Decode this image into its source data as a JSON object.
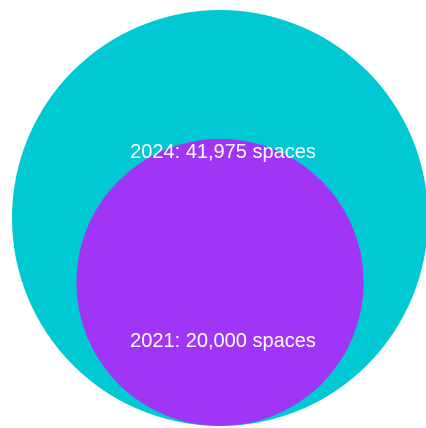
{
  "chart_data": {
    "type": "nested-bubble",
    "title": "",
    "series": [
      {
        "name": "2024",
        "value": 41975,
        "label": "2024: 41,975 spaces",
        "color": "#00c9d4"
      },
      {
        "name": "2021",
        "value": 20000,
        "label": "2021: 20,000 spaces",
        "color": "#a035f5"
      }
    ]
  }
}
